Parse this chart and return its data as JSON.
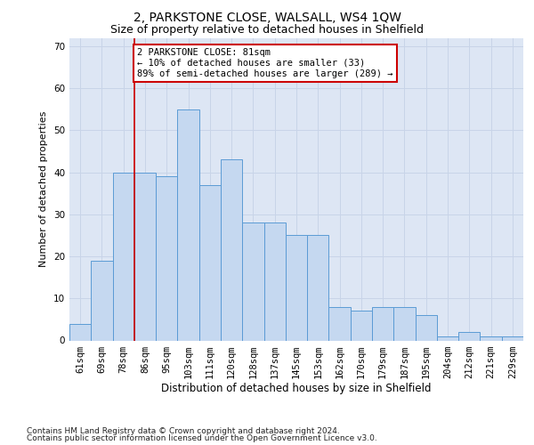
{
  "title1": "2, PARKSTONE CLOSE, WALSALL, WS4 1QW",
  "title2": "Size of property relative to detached houses in Shelfield",
  "xlabel": "Distribution of detached houses by size in Shelfield",
  "ylabel": "Number of detached properties",
  "categories": [
    "61sqm",
    "69sqm",
    "78sqm",
    "86sqm",
    "95sqm",
    "103sqm",
    "111sqm",
    "120sqm",
    "128sqm",
    "137sqm",
    "145sqm",
    "153sqm",
    "162sqm",
    "170sqm",
    "179sqm",
    "187sqm",
    "195sqm",
    "204sqm",
    "212sqm",
    "221sqm",
    "229sqm"
  ],
  "values": [
    4,
    19,
    40,
    40,
    39,
    55,
    37,
    43,
    28,
    28,
    25,
    25,
    8,
    7,
    8,
    8,
    6,
    1,
    2,
    1,
    1
  ],
  "bar_color": "#c5d8f0",
  "bar_edge_color": "#5b9bd5",
  "vline_index": 2,
  "vline_color": "#cc0000",
  "annotation_text": "2 PARKSTONE CLOSE: 81sqm\n← 10% of detached houses are smaller (33)\n89% of semi-detached houses are larger (289) →",
  "annotation_box_facecolor": "#ffffff",
  "annotation_box_edgecolor": "#cc0000",
  "ylim": [
    0,
    72
  ],
  "yticks": [
    0,
    10,
    20,
    30,
    40,
    50,
    60,
    70
  ],
  "grid_color": "#c8d4e8",
  "background_color": "#dde6f4",
  "footer1": "Contains HM Land Registry data © Crown copyright and database right 2024.",
  "footer2": "Contains public sector information licensed under the Open Government Licence v3.0.",
  "title1_fontsize": 10,
  "title2_fontsize": 9,
  "xlabel_fontsize": 8.5,
  "ylabel_fontsize": 8,
  "tick_fontsize": 7.5,
  "annotation_fontsize": 7.5,
  "footer_fontsize": 6.5
}
